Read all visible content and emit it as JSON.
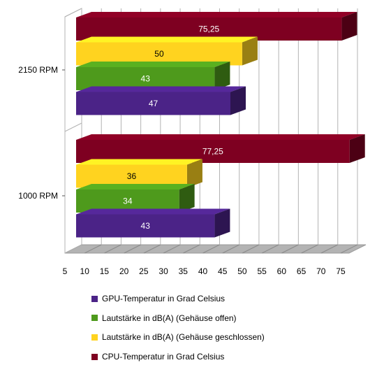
{
  "chart_data": {
    "type": "bar",
    "orientation": "horizontal",
    "three_d": true,
    "categories": [
      "2150 RPM",
      "1000 RPM"
    ],
    "series": [
      {
        "name": "GPU-Temperatur in Grad Celsius",
        "color": "#4B2387",
        "values": [
          47,
          43
        ],
        "labels": [
          "47",
          "43"
        ]
      },
      {
        "name": "Lautstärke in dB(A) (Gehäuse offen)",
        "color": "#4E9A1C",
        "values": [
          43,
          34
        ],
        "labels": [
          "43",
          "34"
        ]
      },
      {
        "name": "Lautstärke in dB(A) (Gehäuse geschlossen)",
        "color": "#FFD31F",
        "values": [
          50,
          36
        ],
        "labels": [
          "50",
          "36"
        ]
      },
      {
        "name": "CPU-Temperatur in Grad Celsius",
        "color": "#7E0021",
        "values": [
          75.25,
          77.25
        ],
        "labels": [
          "75,25",
          "77,25"
        ]
      }
    ],
    "x_ticks": [
      "5",
      "10",
      "15",
      "20",
      "25",
      "30",
      "35",
      "40",
      "45",
      "50",
      "55",
      "60",
      "65",
      "70",
      "75"
    ],
    "xlim": [
      5,
      75
    ],
    "grid": true,
    "legend_position": "bottom"
  }
}
